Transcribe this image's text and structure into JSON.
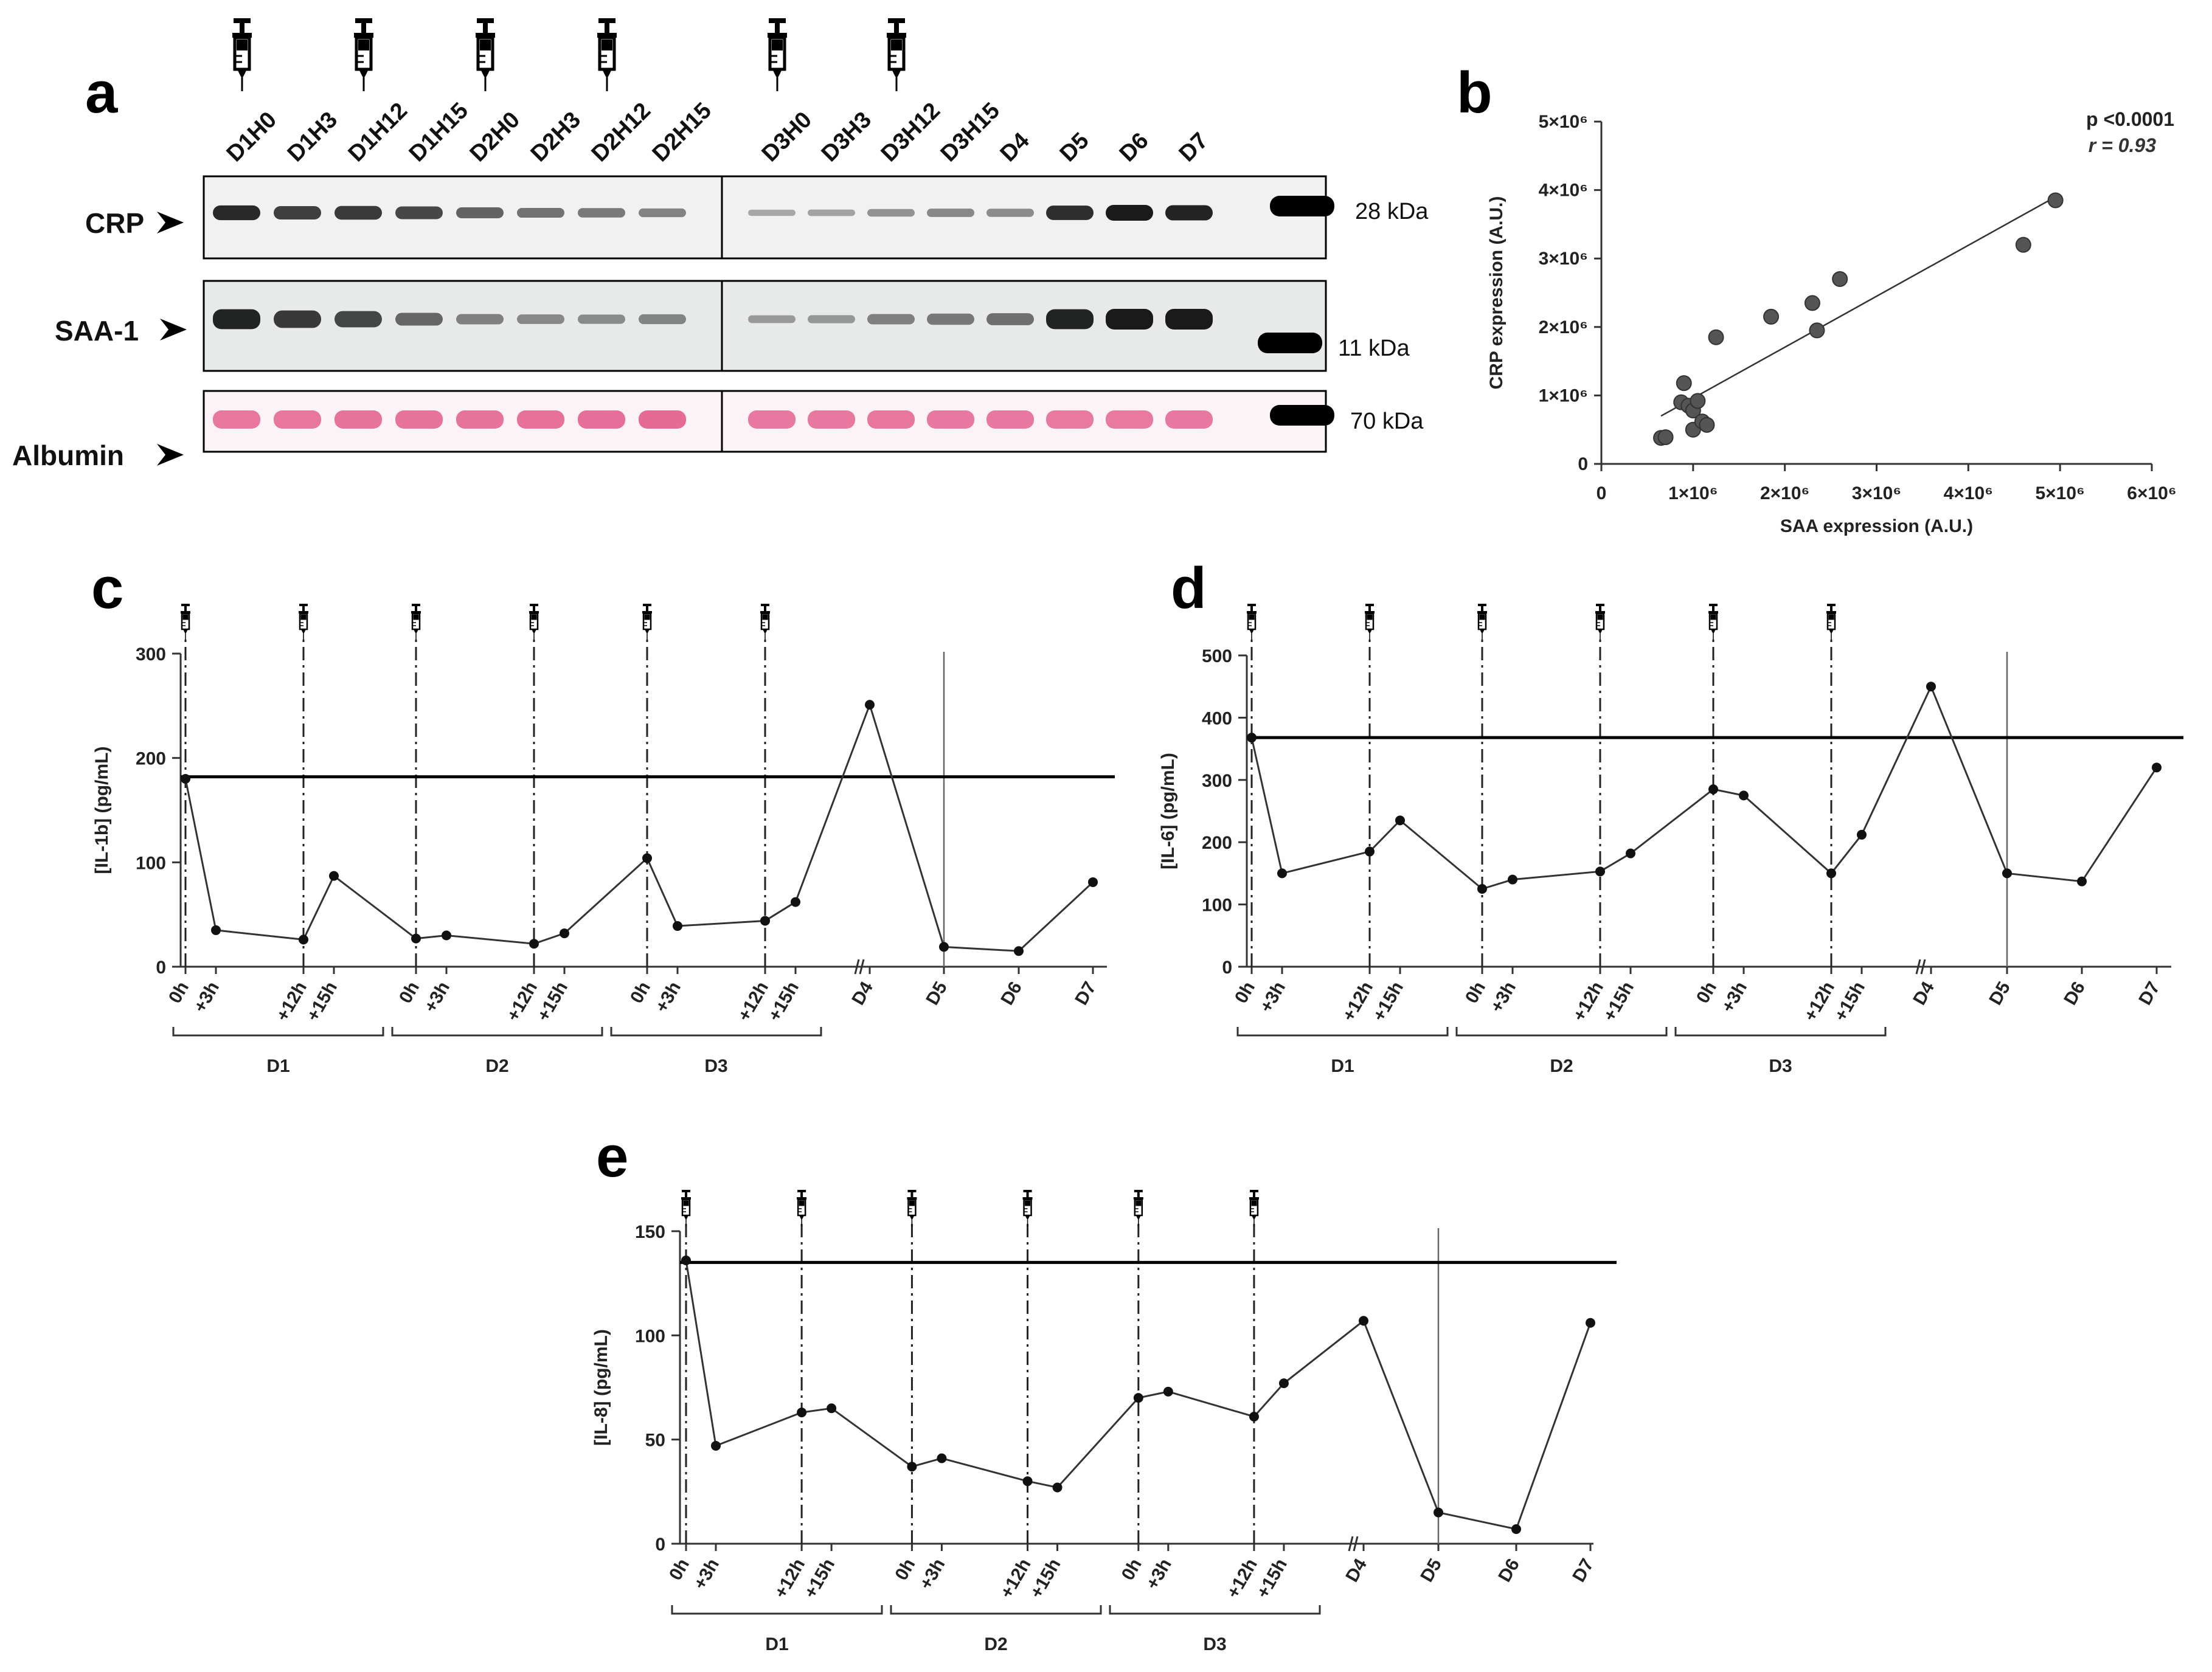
{
  "panels": {
    "a": "a",
    "b": "b",
    "c": "c",
    "d": "d",
    "e": "e"
  },
  "western_blot": {
    "lanes_left": [
      "D1H0",
      "D1H3",
      "D1H12",
      "D1H15",
      "D2H0",
      "D2H3",
      "D2H12",
      "D2H15"
    ],
    "lanes_right": [
      "D3H0",
      "D3H3",
      "D3H12",
      "D3H15",
      "D4",
      "D5",
      "D6",
      "D7"
    ],
    "injection_lanes": [
      "D1H0",
      "D1H12",
      "D2H0",
      "D2H12",
      "D3H0",
      "D3H12"
    ],
    "rows": [
      {
        "label": "CRP",
        "mw": "28 kDa",
        "intensity": [
          0.9,
          0.78,
          0.8,
          0.72,
          0.55,
          0.45,
          0.42,
          0.35,
          0.12,
          0.15,
          0.25,
          0.32,
          0.3,
          0.88,
          1.0,
          0.95
        ],
        "color": "#1a1a1a"
      },
      {
        "label": "SAA-1",
        "mw": "11 kDa",
        "intensity": [
          0.95,
          0.8,
          0.72,
          0.5,
          0.35,
          0.3,
          0.28,
          0.32,
          0.18,
          0.2,
          0.35,
          0.4,
          0.45,
          0.95,
          1.0,
          1.0
        ],
        "color": "#1a1a1a"
      },
      {
        "label": "Albumin",
        "mw": "70 kDa",
        "intensity": [
          0.75,
          0.75,
          0.78,
          0.78,
          0.78,
          0.8,
          0.82,
          0.88,
          0.72,
          0.72,
          0.75,
          0.72,
          0.72,
          0.7,
          0.7,
          0.72
        ],
        "color": "#e0457a"
      }
    ]
  },
  "chart_data": [
    {
      "panel": "b",
      "type": "scatter",
      "xlabel": "SAA expression (A.U.)",
      "ylabel": "CRP expression (A.U.)",
      "x_ticks": [
        "0",
        "1×10⁶",
        "2×10⁶",
        "3×10⁶",
        "4×10⁶",
        "5×10⁶",
        "6×10⁶"
      ],
      "y_ticks": [
        "0",
        "1×10⁶",
        "2×10⁶",
        "3×10⁶",
        "4×10⁶",
        "5×10⁶"
      ],
      "xlim": [
        0,
        6000000
      ],
      "ylim": [
        0,
        5000000
      ],
      "annotation_p": "p <0.0001",
      "annotation_r": "r = 0.93",
      "points": [
        [
          650000,
          380000
        ],
        [
          700000,
          390000
        ],
        [
          900000,
          1180000
        ],
        [
          870000,
          900000
        ],
        [
          950000,
          850000
        ],
        [
          1000000,
          780000
        ],
        [
          1000000,
          500000
        ],
        [
          1050000,
          920000
        ],
        [
          1100000,
          620000
        ],
        [
          1150000,
          570000
        ],
        [
          1250000,
          1850000
        ],
        [
          1850000,
          2150000
        ],
        [
          2300000,
          2350000
        ],
        [
          2350000,
          1950000
        ],
        [
          2600000,
          2700000
        ],
        [
          4600000,
          3200000
        ],
        [
          4950000,
          3850000
        ]
      ],
      "fit_line": [
        [
          650000,
          700000
        ],
        [
          4950000,
          3900000
        ]
      ]
    },
    {
      "panel": "c",
      "type": "line",
      "ylabel": "[IL-1b] (pg/mL)",
      "y_ticks": [
        0,
        100,
        200,
        300
      ],
      "ylim": [
        0,
        300
      ],
      "threshold": 182,
      "x_tick_labels": [
        "0h",
        "+3h",
        "+12h",
        "+15h",
        "0h",
        "+3h",
        "+12h",
        "+15h",
        "0h",
        "+3h",
        "+12h",
        "+15h",
        "D4",
        "D5",
        "D6",
        "D7"
      ],
      "group_labels": [
        "D1",
        "D2",
        "D3"
      ],
      "values": [
        180,
        35,
        26,
        87,
        27,
        30,
        22,
        32,
        104,
        39,
        44,
        62,
        251,
        19,
        15,
        81
      ]
    },
    {
      "panel": "d",
      "type": "line",
      "ylabel": "[IL-6] (pg/mL)",
      "y_ticks": [
        0,
        100,
        200,
        300,
        400,
        500
      ],
      "ylim": [
        0,
        500
      ],
      "threshold": 368,
      "x_tick_labels": [
        "0h",
        "+3h",
        "+12h",
        "+15h",
        "0h",
        "+3h",
        "+12h",
        "+15h",
        "0h",
        "+3h",
        "+12h",
        "+15h",
        "D4",
        "D5",
        "D6",
        "D7"
      ],
      "group_labels": [
        "D1",
        "D2",
        "D3"
      ],
      "values": [
        368,
        150,
        185,
        235,
        125,
        140,
        153,
        182,
        285,
        275,
        150,
        212,
        450,
        150,
        137,
        320
      ]
    },
    {
      "panel": "e",
      "type": "line",
      "ylabel": "[IL-8] (pg/mL)",
      "y_ticks": [
        0,
        50,
        100,
        150
      ],
      "ylim": [
        0,
        150
      ],
      "threshold": 135,
      "x_tick_labels": [
        "0h",
        "+3h",
        "+12h",
        "+15h",
        "0h",
        "+3h",
        "+12h",
        "+15h",
        "0h",
        "+3h",
        "+12h",
        "+15h",
        "D4",
        "D5",
        "D6",
        "D7"
      ],
      "group_labels": [
        "D1",
        "D2",
        "D3"
      ],
      "values": [
        136,
        47,
        63,
        65,
        37,
        41,
        30,
        27,
        70,
        73,
        61,
        77,
        107,
        15,
        7,
        106
      ]
    }
  ]
}
